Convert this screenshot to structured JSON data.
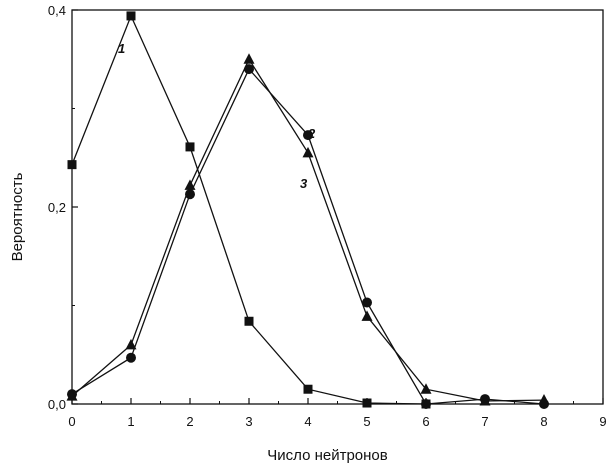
{
  "chart_data": {
    "type": "line",
    "title": "",
    "xlabel": "Число нейтронов",
    "ylabel": "Вероятность",
    "xlim": [
      0,
      9
    ],
    "ylim": [
      0,
      0.4
    ],
    "x_ticks": [
      "0",
      "1",
      "2",
      "3",
      "4",
      "5",
      "6",
      "7",
      "8",
      "9"
    ],
    "y_ticks": [
      {
        "value": 0.0,
        "label": "0,0"
      },
      {
        "value": 0.2,
        "label": "0,2"
      },
      {
        "value": 0.4,
        "label": "0,4"
      }
    ],
    "grid": false,
    "legend": "none",
    "series": [
      {
        "label": "1",
        "marker": "square",
        "x": [
          0,
          1,
          2,
          3,
          4,
          5,
          6
        ],
        "values": [
          0.243,
          0.394,
          0.261,
          0.084,
          0.015,
          0.001,
          0.0
        ]
      },
      {
        "label": "2",
        "marker": "circle",
        "x": [
          0,
          1,
          2,
          3,
          4,
          5,
          6,
          7,
          8
        ],
        "values": [
          0.01,
          0.047,
          0.213,
          0.34,
          0.273,
          0.103,
          0.0,
          0.005,
          0.0
        ]
      },
      {
        "label": "3",
        "marker": "triangle",
        "x": [
          0,
          1,
          2,
          3,
          4,
          5,
          6,
          7,
          8
        ],
        "values": [
          0.008,
          0.06,
          0.222,
          0.35,
          0.255,
          0.089,
          0.015,
          0.003,
          0.004
        ]
      }
    ]
  }
}
